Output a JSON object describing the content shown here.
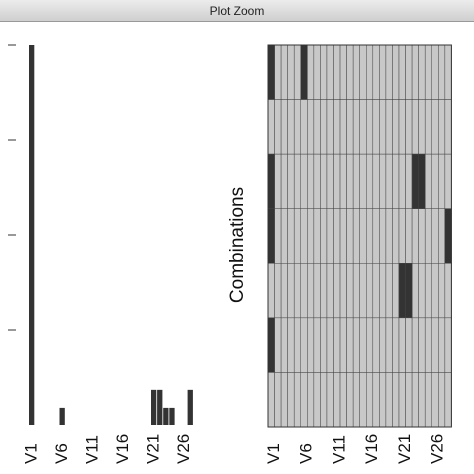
{
  "window": {
    "title": "Plot Zoom"
  },
  "chart_data": [
    {
      "type": "bar",
      "categories": [
        "V1",
        null,
        null,
        null,
        null,
        "V6",
        null,
        null,
        null,
        null,
        "V11",
        null,
        null,
        null,
        null,
        "V16",
        null,
        null,
        null,
        null,
        "V21",
        null,
        null,
        null,
        null,
        "V26",
        null,
        null
      ],
      "values": [
        0.4,
        0,
        0,
        0,
        0,
        0.018,
        0,
        0,
        0,
        0,
        0,
        0,
        0,
        0,
        0,
        0,
        0,
        0,
        0,
        0,
        0.037,
        0.037,
        0.018,
        0.018,
        0,
        0,
        0.037,
        0
      ],
      "color": "#333333",
      "ylim": [
        0,
        0.4
      ],
      "yticks": [
        0.1,
        0.2,
        0.3,
        0.4
      ]
    },
    {
      "type": "combinations",
      "ylabel": "Combinations",
      "categories": [
        "V1",
        null,
        null,
        null,
        null,
        "V6",
        null,
        null,
        null,
        null,
        "V11",
        null,
        null,
        null,
        null,
        "V16",
        null,
        null,
        null,
        null,
        "V21",
        null,
        null,
        null,
        null,
        "V26",
        null,
        null
      ],
      "missing": [
        [
          0,
          5
        ],
        [],
        [
          0,
          22,
          23
        ],
        [
          0,
          27
        ],
        [
          20,
          21
        ],
        [
          0
        ],
        []
      ],
      "color": "#333333",
      "background": "#c8c8c8"
    }
  ]
}
